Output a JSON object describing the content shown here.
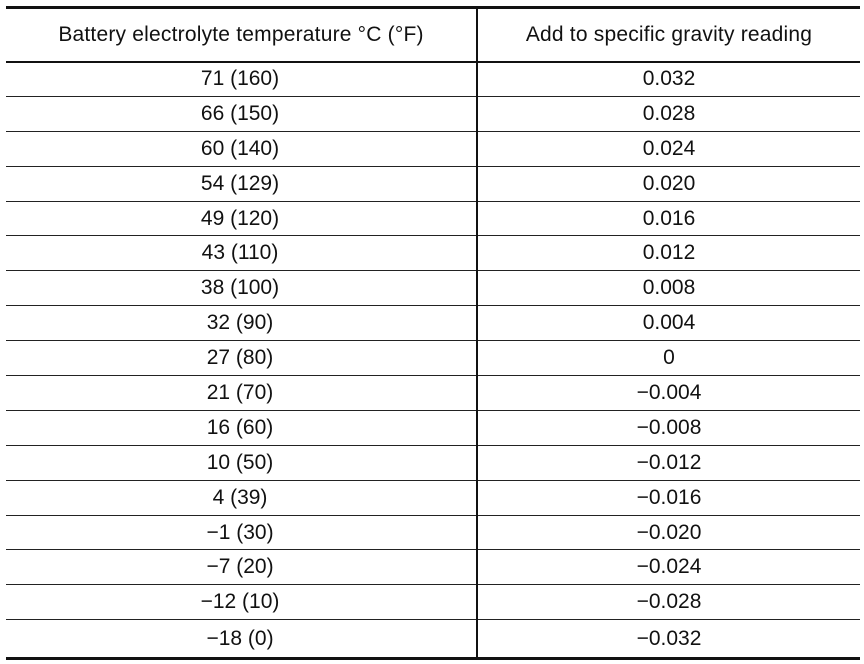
{
  "table": {
    "headers": [
      "Battery electrolyte temperature °C (°F)",
      "Add to specific gravity reading"
    ],
    "rows": [
      [
        "71 (160)",
        "0.032"
      ],
      [
        "66 (150)",
        "0.028"
      ],
      [
        "60 (140)",
        "0.024"
      ],
      [
        "54 (129)",
        "0.020"
      ],
      [
        "49 (120)",
        "0.016"
      ],
      [
        "43 (110)",
        "0.012"
      ],
      [
        "38 (100)",
        "0.008"
      ],
      [
        "32 (90)",
        "0.004"
      ],
      [
        "27 (80)",
        "0"
      ],
      [
        "21 (70)",
        "−0.004"
      ],
      [
        "16 (60)",
        "−0.008"
      ],
      [
        "10 (50)",
        "−0.012"
      ],
      [
        "4 (39)",
        "−0.016"
      ],
      [
        "−1 (30)",
        "−0.020"
      ],
      [
        "−7 (20)",
        "−0.024"
      ],
      [
        "−12 (10)",
        "−0.028"
      ],
      [
        "−18 (0)",
        "−0.032"
      ]
    ]
  }
}
